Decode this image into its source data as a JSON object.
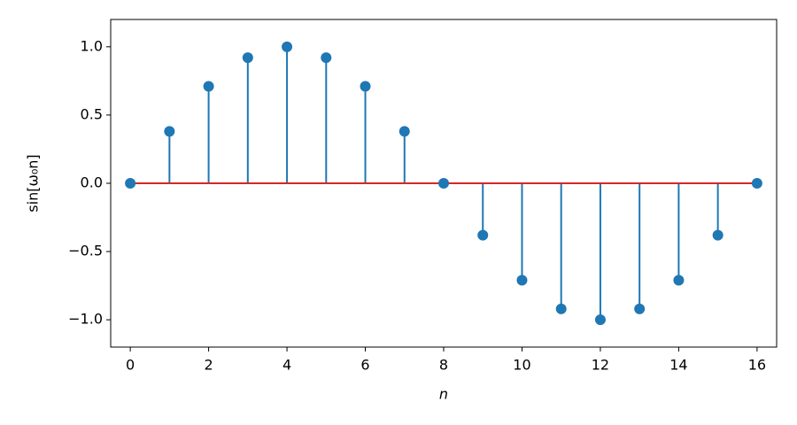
{
  "chart_data": {
    "type": "stem",
    "x_label": "n",
    "y_label": "sin[ω₀n]",
    "x": [
      0,
      1,
      2,
      3,
      4,
      5,
      6,
      7,
      8,
      9,
      10,
      11,
      12,
      13,
      14,
      15,
      16
    ],
    "values": [
      0,
      0.38,
      0.71,
      0.92,
      1,
      0.92,
      0.71,
      0.38,
      0,
      -0.38,
      -0.71,
      -0.92,
      -1,
      -0.92,
      -0.71,
      -0.38,
      0
    ],
    "color": "#1f77b4",
    "baseline_color": "#d62728",
    "xlim": [
      -0.5,
      16.5
    ],
    "xticks": [
      0,
      2,
      4,
      6,
      8,
      10,
      12,
      14,
      16
    ],
    "ylim": [
      -1.2,
      1.2
    ],
    "yticks": [
      {
        "value": -1.0,
        "label": "−1.0"
      },
      {
        "value": -0.5,
        "label": "−0.5"
      },
      {
        "value": 0.0,
        "label": "0.0"
      },
      {
        "value": 0.5,
        "label": "0.5"
      },
      {
        "value": 1.0,
        "label": "1.0"
      }
    ],
    "grid": false
  }
}
